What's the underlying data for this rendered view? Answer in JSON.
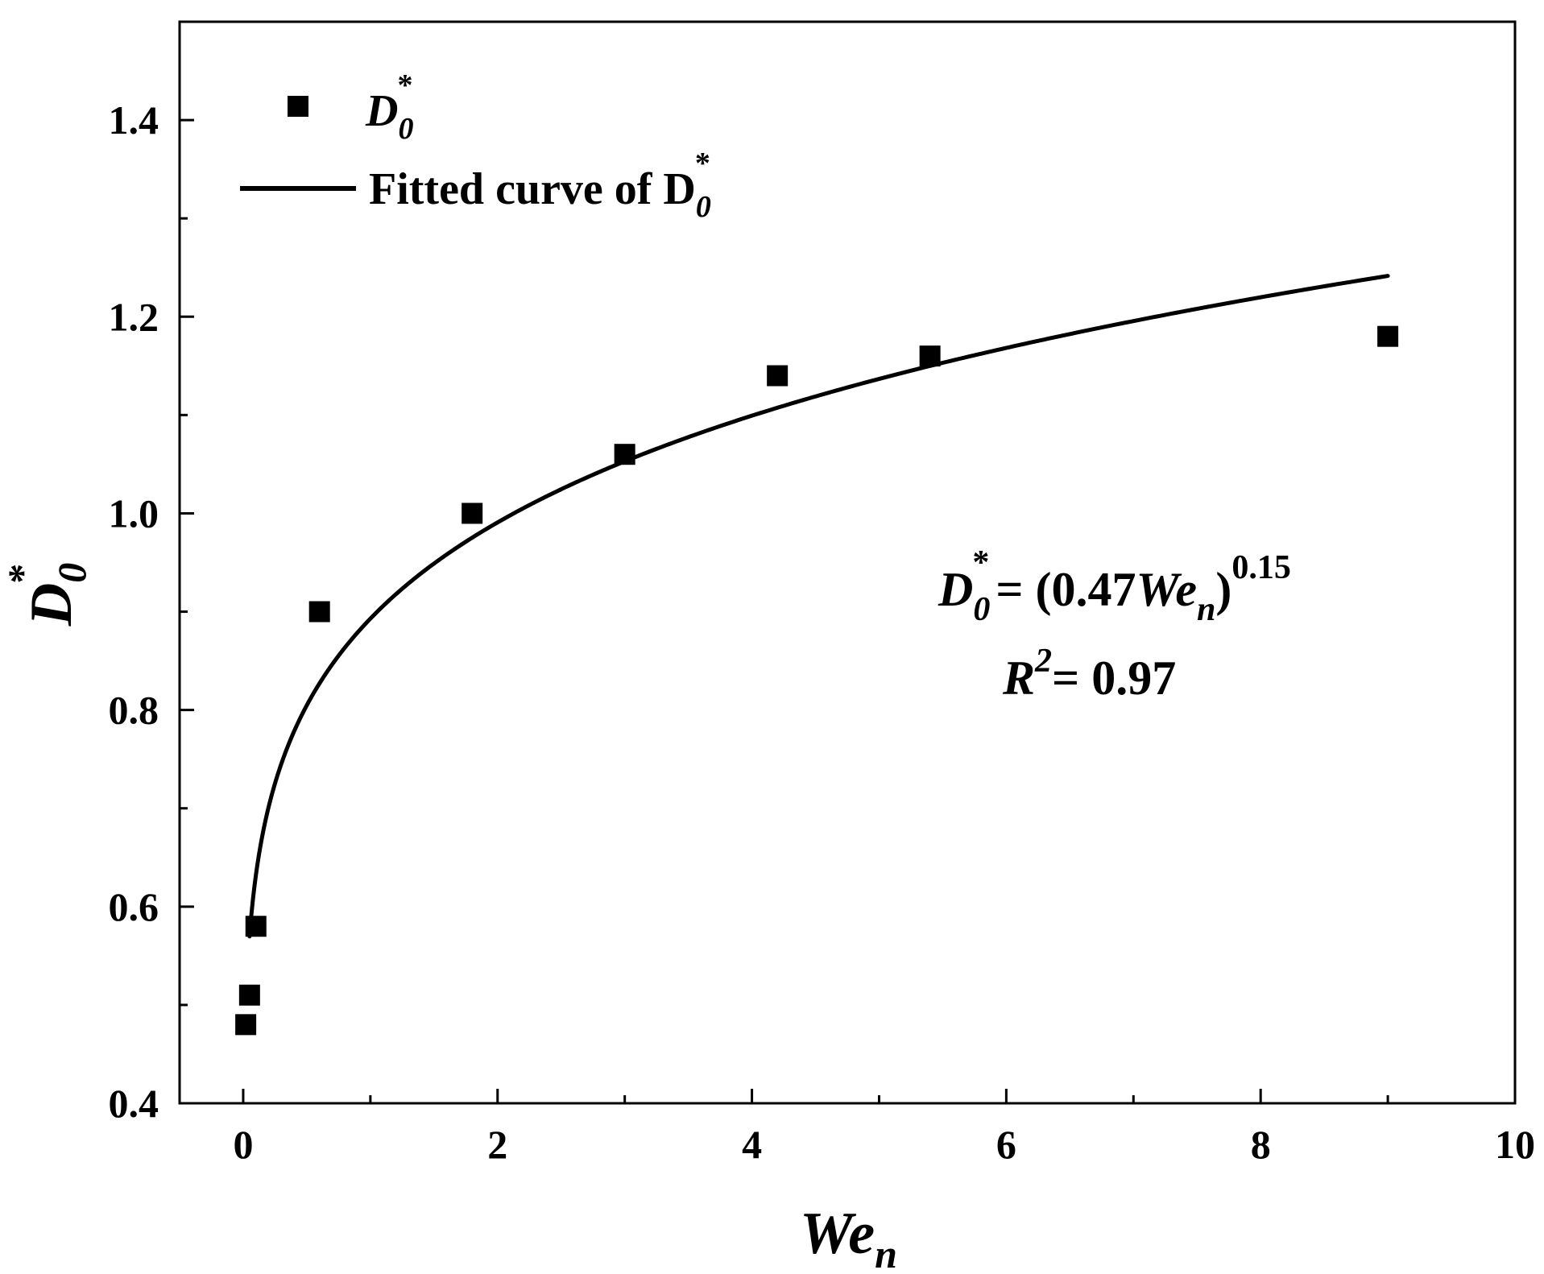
{
  "chart_data": {
    "type": "scatter",
    "xlabel": "We",
    "xlabel_sub": "n",
    "ylabel": "D",
    "ylabel_sub": "0",
    "ylabel_sup": "*",
    "xlim": [
      -0.5,
      10
    ],
    "ylim": [
      0.4,
      1.5
    ],
    "xticks": [
      0,
      2,
      4,
      6,
      8,
      10
    ],
    "xtick_labels": [
      "0",
      "2",
      "4",
      "6",
      "8",
      "10"
    ],
    "yticks": [
      0.4,
      0.6,
      0.8,
      1.0,
      1.2,
      1.4
    ],
    "ytick_labels": [
      "0.4",
      "0.6",
      "0.8",
      "1.0",
      "1.2",
      "1.4"
    ],
    "legend_position": "top-left",
    "grid": false,
    "series": [
      {
        "name": "D",
        "name_sub": "0",
        "name_sup": "*",
        "kind": "scatter",
        "marker": "square",
        "color": "#000000",
        "x": [
          0.02,
          0.05,
          0.1,
          0.6,
          1.8,
          3.0,
          4.2,
          5.4,
          9.0
        ],
        "y": [
          0.48,
          0.51,
          0.58,
          0.9,
          1.0,
          1.06,
          1.14,
          1.16,
          1.18
        ]
      },
      {
        "name": "Fitted curve of D",
        "name_sub": "0",
        "name_sup": "*",
        "kind": "line",
        "color": "#000000",
        "model": {
          "coefficient": 0.47,
          "exponent": 0.15
        },
        "x_range": [
          0.05,
          9.0
        ]
      }
    ],
    "annotation": {
      "equation": {
        "lhs": "D",
        "lhs_sub": "0",
        "lhs_sup": "*",
        "rhs_open": "= (0.47",
        "rhs_var": "We",
        "rhs_sub": "n",
        "rhs_close": ")",
        "rhs_exp": "0.15"
      },
      "r2": {
        "label": "R",
        "sup": "2",
        "value": "= 0.97"
      }
    }
  }
}
